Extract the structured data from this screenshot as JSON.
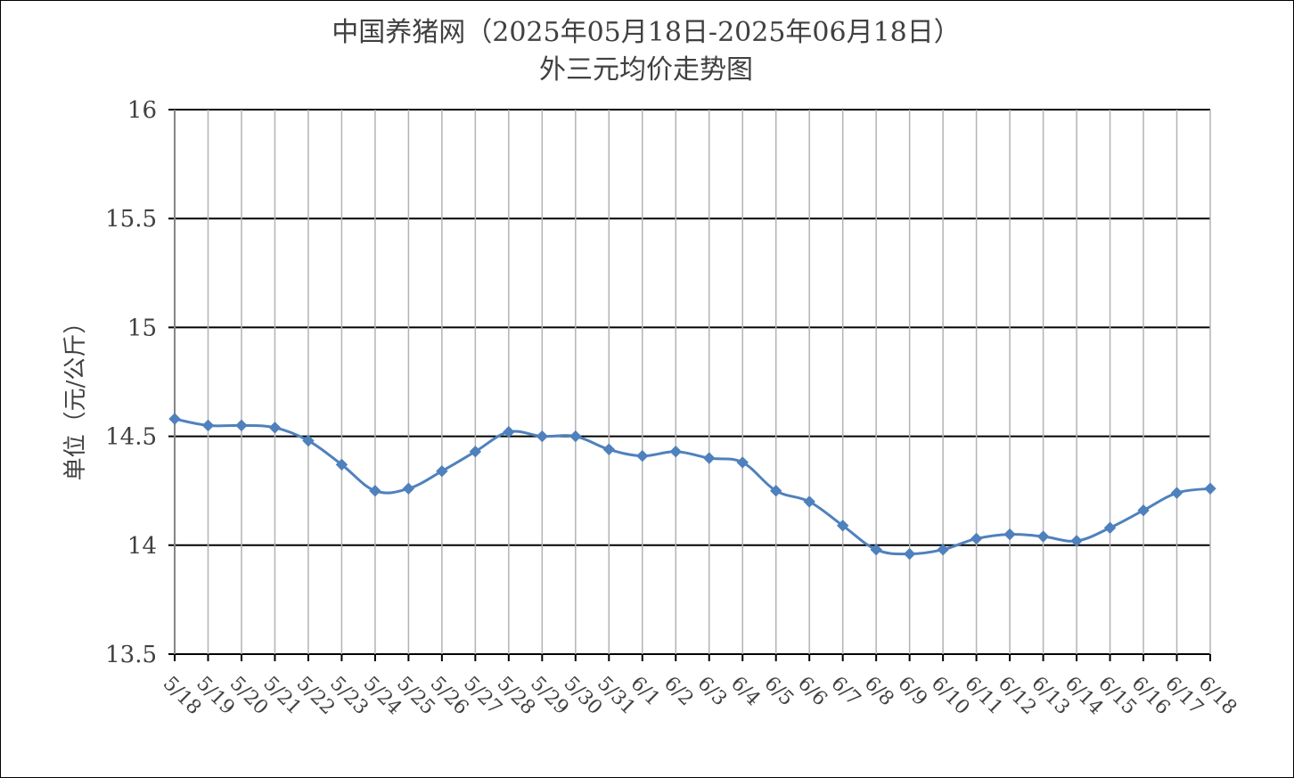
{
  "chart_data": {
    "type": "line",
    "title_line1": "中国养猪网（2025年05月18日-2025年06月18日）",
    "title_line2": "外三元均价走势图",
    "ylabel": "单位（元/公斤）",
    "xlabel": "",
    "ylim": [
      13.5,
      16
    ],
    "yticks": [
      "13.5",
      "14",
      "14.5",
      "15",
      "15.5",
      "16"
    ],
    "grid": true,
    "legend": "none",
    "line_color": "#4f81bd",
    "marker": "diamond",
    "categories": [
      "5/18",
      "5/19",
      "5/20",
      "5/21",
      "5/22",
      "5/23",
      "5/24",
      "5/25",
      "5/26",
      "5/27",
      "5/28",
      "5/29",
      "5/30",
      "5/31",
      "6/1",
      "6/2",
      "6/3",
      "6/4",
      "6/5",
      "6/6",
      "6/7",
      "6/8",
      "6/9",
      "6/10",
      "6/11",
      "6/12",
      "6/13",
      "6/14",
      "6/15",
      "6/16",
      "6/17",
      "6/18"
    ],
    "values": [
      14.58,
      14.55,
      14.55,
      14.54,
      14.48,
      14.37,
      14.25,
      14.26,
      14.34,
      14.43,
      14.52,
      14.5,
      14.5,
      14.44,
      14.41,
      14.43,
      14.4,
      14.38,
      14.25,
      14.2,
      14.09,
      13.98,
      13.96,
      13.98,
      14.03,
      14.05,
      14.04,
      14.02,
      14.08,
      14.16,
      14.24,
      14.26
    ]
  }
}
